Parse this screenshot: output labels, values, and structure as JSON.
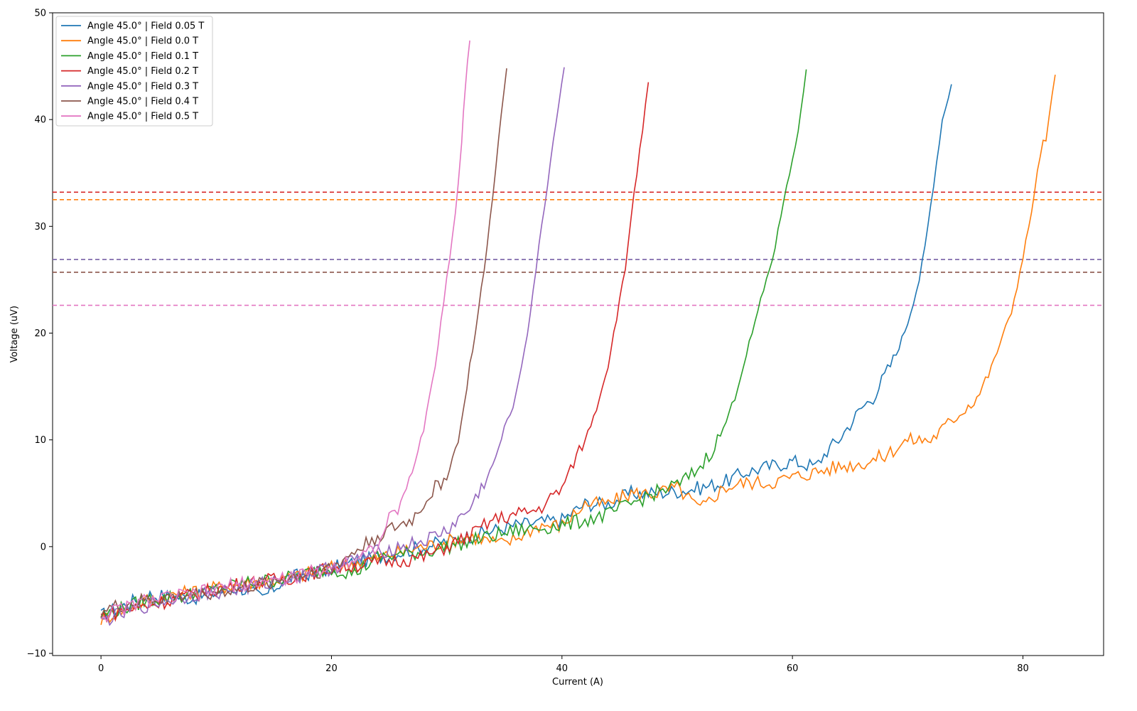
{
  "chart_data": {
    "type": "line",
    "title": "",
    "xlabel": "Current (A)",
    "ylabel": "Voltage (uV)",
    "xlim": [
      -4.2,
      87
    ],
    "ylim": [
      -10.2,
      50
    ],
    "xticks": [
      0,
      20,
      40,
      60,
      80
    ],
    "yticks": [
      -10,
      0,
      10,
      20,
      30,
      40,
      50
    ],
    "grid": false,
    "legend_position": "top-left",
    "series": [
      {
        "name": "Angle 45.0° | Field 0.05 T",
        "color": "#1f77b4",
        "threshold": 26.9,
        "x": [
          0,
          4,
          8,
          12,
          14,
          16,
          20,
          24,
          28,
          32,
          36,
          40,
          42,
          44,
          46,
          48,
          50,
          52,
          54,
          56,
          58,
          60,
          62,
          63,
          64,
          65,
          66,
          67,
          68,
          69,
          70,
          71,
          71.5,
          72,
          72.5,
          73,
          73.8
        ],
        "y": [
          -6.5,
          -4.5,
          -4.8,
          -3.8,
          -4.8,
          -3,
          -2,
          -1,
          0,
          1,
          2,
          2.5,
          4,
          4,
          5,
          5,
          5.2,
          5.5,
          6,
          7,
          7.5,
          8,
          7.5,
          9,
          10,
          11.5,
          13,
          14,
          16,
          18,
          21,
          25,
          28,
          32,
          36,
          40,
          43.3
        ]
      },
      {
        "name": "Angle 45.0° | Field 0.0 T",
        "color": "#ff7f0e",
        "threshold": 32.5,
        "x": [
          0,
          4,
          8,
          12,
          16,
          20,
          24,
          28,
          32,
          35,
          38,
          40,
          42,
          44,
          46,
          48,
          50,
          52,
          54,
          56,
          58,
          60,
          62,
          64,
          66,
          68,
          70,
          72,
          74,
          75,
          76,
          77,
          78,
          79,
          80,
          81,
          81.5,
          82,
          82.8
        ],
        "y": [
          -6.8,
          -5,
          -4.2,
          -3.5,
          -3,
          -2,
          -1,
          0,
          1,
          0.2,
          2,
          2,
          4,
          4,
          5,
          5,
          5.5,
          3.5,
          5.5,
          6,
          6,
          6.5,
          7,
          7.5,
          7.8,
          8.5,
          10,
          10,
          12,
          13,
          14,
          16,
          19,
          22,
          27,
          33,
          37,
          38,
          44.2
        ]
      },
      {
        "name": "Angle 45.0° | Field 0.1 T",
        "color": "#2ca02c",
        "threshold": 26.9,
        "x": [
          0,
          4,
          8,
          12,
          16,
          20,
          22,
          24,
          28,
          32,
          36,
          40,
          42,
          44,
          46,
          48,
          50,
          51,
          52,
          53,
          54,
          55,
          56,
          57,
          58,
          58.5,
          59,
          59.5,
          60,
          60.5,
          61.2
        ],
        "y": [
          -6.5,
          -5,
          -4.5,
          -3.5,
          -3,
          -2,
          -2.5,
          -1,
          -0.5,
          0.5,
          1.5,
          2,
          2.5,
          3,
          4,
          5,
          5.8,
          6.5,
          7.5,
          9,
          11,
          14,
          18,
          22,
          26,
          28,
          31,
          34,
          36,
          39,
          44.7
        ]
      },
      {
        "name": "Angle 45.0° | Field 0.2 T",
        "color": "#d62728",
        "threshold": 33.2,
        "x": [
          0,
          4,
          8,
          12,
          16,
          20,
          24,
          28,
          32,
          34,
          36,
          38,
          40,
          41,
          42,
          43,
          44,
          44.5,
          45,
          45.5,
          46,
          46.5,
          47,
          47.5
        ],
        "y": [
          -6.5,
          -5.5,
          -4.5,
          -3.5,
          -3,
          -2,
          -1.5,
          -1,
          1,
          2.5,
          3,
          3.5,
          5.5,
          8,
          10,
          13,
          17,
          20,
          23,
          26,
          31,
          35,
          39,
          43.5
        ]
      },
      {
        "name": "Angle 45.0° | Field 0.3 T",
        "color": "#9467bd",
        "threshold": 26.9,
        "x": [
          0,
          4,
          8,
          12,
          16,
          20,
          24,
          28,
          30,
          32,
          33,
          34,
          35,
          36,
          36.5,
          37,
          37.5,
          38,
          38.5,
          39,
          39.5,
          40.2
        ],
        "y": [
          -7,
          -5.5,
          -4.5,
          -4,
          -3,
          -2,
          -0.5,
          0.5,
          1.5,
          3.5,
          5.5,
          7.5,
          11,
          14,
          17,
          20,
          24,
          28,
          32,
          36,
          40,
          44.9
        ]
      },
      {
        "name": "Angle 45.0° | Field 0.4 T",
        "color": "#8c564b",
        "threshold": 25.7,
        "x": [
          0,
          4,
          8,
          12,
          16,
          20,
          24,
          26,
          27,
          28,
          29,
          30,
          31,
          31.5,
          32,
          32.5,
          33,
          33.5,
          34,
          34.5,
          35.2
        ],
        "y": [
          -6,
          -5,
          -4.5,
          -4,
          -3,
          -2,
          1,
          2,
          2.5,
          4,
          5.5,
          6.5,
          10,
          13,
          17,
          20,
          24,
          28,
          33,
          38,
          44.8
        ]
      },
      {
        "name": "Angle 45.0° | Field 0.5 T",
        "color": "#e377c2",
        "threshold": 22.6,
        "x": [
          0,
          4,
          8,
          12,
          16,
          20,
          22,
          24,
          25,
          26,
          27,
          28,
          28.5,
          29,
          29.5,
          30,
          30.5,
          31,
          31.3,
          31.6,
          32
        ],
        "y": [
          -6.5,
          -5,
          -4.5,
          -3.5,
          -3,
          -2,
          -1,
          0,
          2.5,
          4,
          7,
          11,
          14,
          17,
          21,
          25,
          29,
          34,
          38,
          43,
          47.4
        ]
      }
    ]
  }
}
